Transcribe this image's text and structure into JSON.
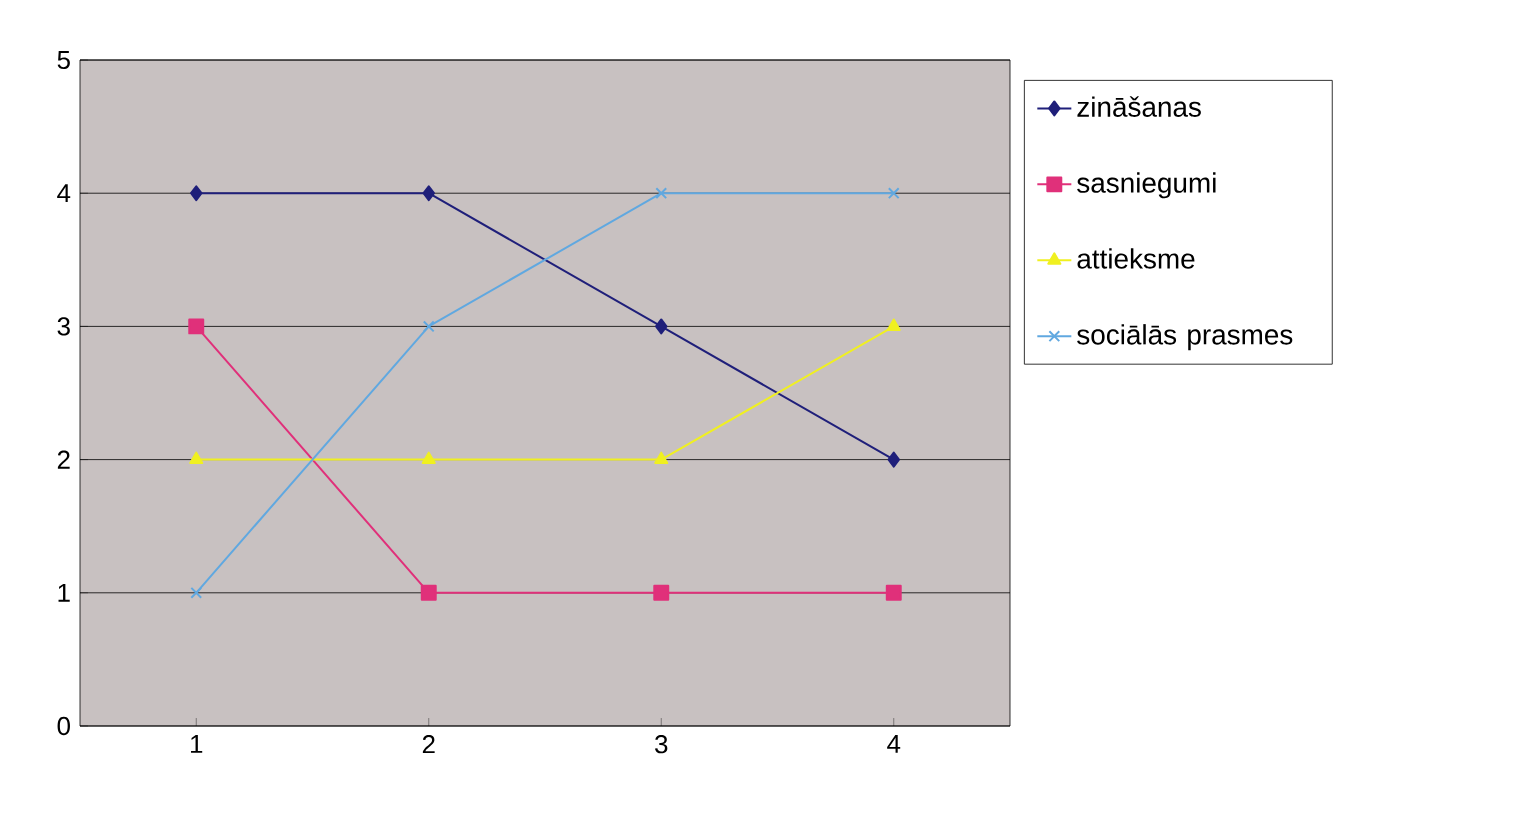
{
  "chart_data": {
    "type": "line",
    "categories": [
      "1",
      "2",
      "3",
      "4"
    ],
    "series": [
      {
        "name": "zināšanas",
        "color": "#1f1f7a",
        "marker": "diamond",
        "values": [
          4,
          4,
          3,
          2
        ]
      },
      {
        "name": "sasniegumi",
        "color": "#e0307a",
        "marker": "square",
        "values": [
          3,
          1,
          1,
          1
        ]
      },
      {
        "name": "attieksme",
        "color": "#f0f020",
        "marker": "triangle",
        "values": [
          2,
          2,
          2,
          3
        ]
      },
      {
        "name": "sociālās prasmes",
        "color": "#60a8e0",
        "marker": "cross",
        "values": [
          1,
          3,
          4,
          4
        ]
      }
    ],
    "ylim": [
      0,
      5
    ],
    "yticks": [
      0,
      1,
      2,
      3,
      4,
      5
    ],
    "grid": "y",
    "legend": "right",
    "line_style": "solid"
  }
}
